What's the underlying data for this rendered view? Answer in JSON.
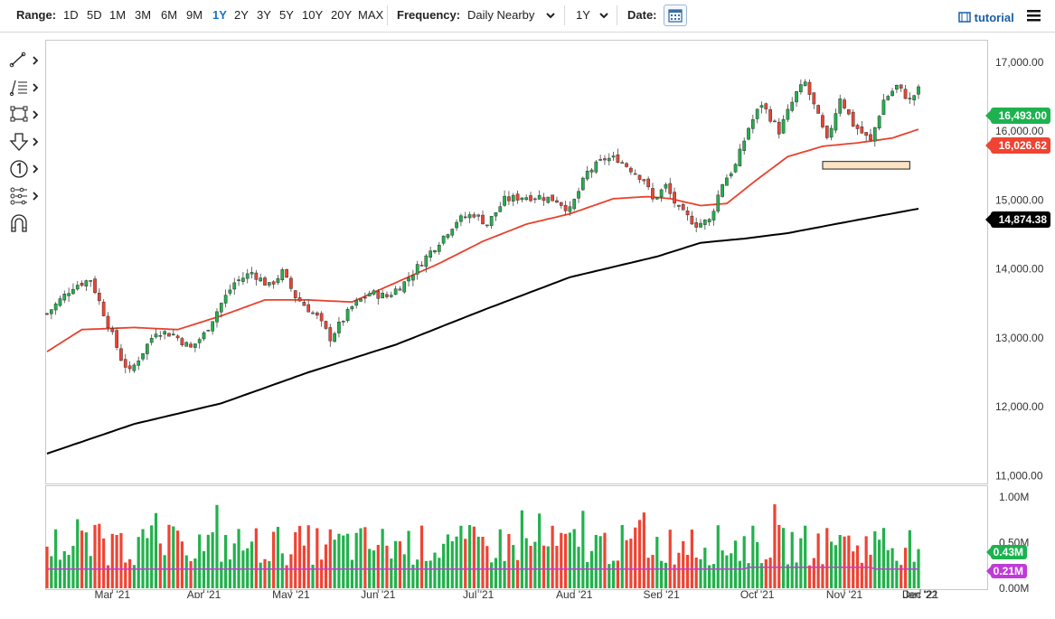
{
  "toolbar": {
    "range_label": "Range:",
    "ranges": [
      "1D",
      "5D",
      "1M",
      "3M",
      "6M",
      "9M",
      "1Y",
      "2Y",
      "3Y",
      "5Y",
      "10Y",
      "20Y",
      "MAX"
    ],
    "active_range": "1Y",
    "frequency_label": "Frequency:",
    "frequency_value": "Daily Nearby",
    "period_value": "1Y",
    "date_label": "Date:",
    "tutorial_label": "tutorial"
  },
  "sidebar_tools": [
    "line-tool-icon",
    "fib-tool-icon",
    "rectangle-tool-icon",
    "arrow-tool-icon",
    "number-tool-icon",
    "measure-tool-icon",
    "magnet-icon"
  ],
  "price_tags": {
    "last": "16,493.00",
    "ma_fast": "16,026.62",
    "ma_slow": "14,874.38"
  },
  "volume_tags": {
    "volume": "0.43M",
    "volume_avg": "0.21M"
  },
  "colors": {
    "up": "#22b14c",
    "down": "#ef4433",
    "ma_fast": "#e8412c",
    "ma_slow": "#000000",
    "vol_avg": "#c03ad8",
    "active": "#1a73c8",
    "support_box": "#fbe3c4"
  },
  "chart_data": {
    "type": "candlestick",
    "x_labels": [
      "Mar '21",
      "Apr '21",
      "May '21",
      "Jun '21",
      "Jul '21",
      "Aug '21",
      "Sep '21",
      "Oct '21",
      "Nov '21",
      "Dec '21",
      "Jan '22"
    ],
    "y_ticks": [
      "17,000.00",
      "16,000.00",
      "15,000.00",
      "14,000.00",
      "13,000.00",
      "12,000.00",
      "11,000.00"
    ],
    "y_range": [
      10900,
      17300
    ],
    "vol_ticks": [
      "1.00M",
      "0.50M",
      "0.00M"
    ],
    "vol_range": [
      0,
      1.1
    ],
    "price_path": [
      [
        0,
        13350
      ],
      [
        6,
        13750
      ],
      [
        10,
        13850
      ],
      [
        14,
        13200
      ],
      [
        17,
        12700
      ],
      [
        19,
        12500
      ],
      [
        21,
        12700
      ],
      [
        25,
        13100
      ],
      [
        29,
        13050
      ],
      [
        33,
        12850
      ],
      [
        36,
        13050
      ],
      [
        40,
        13500
      ],
      [
        43,
        13800
      ],
      [
        47,
        13950
      ],
      [
        51,
        13750
      ],
      [
        54,
        13950
      ],
      [
        57,
        13600
      ],
      [
        62,
        13300
      ],
      [
        65,
        13000
      ],
      [
        70,
        13450
      ],
      [
        74,
        13650
      ],
      [
        78,
        13600
      ],
      [
        82,
        13800
      ],
      [
        86,
        14100
      ],
      [
        90,
        14400
      ],
      [
        94,
        14700
      ],
      [
        98,
        14800
      ],
      [
        101,
        14650
      ],
      [
        105,
        15000
      ],
      [
        109,
        15050
      ],
      [
        113,
        15050
      ],
      [
        117,
        15000
      ],
      [
        120,
        14850
      ],
      [
        124,
        15400
      ],
      [
        128,
        15600
      ],
      [
        131,
        15600
      ],
      [
        134,
        15450
      ],
      [
        137,
        15300
      ],
      [
        139,
        15000
      ],
      [
        142,
        15200
      ],
      [
        145,
        14850
      ],
      [
        149,
        14650
      ],
      [
        152,
        14700
      ],
      [
        155,
        15250
      ],
      [
        158,
        15500
      ],
      [
        161,
        16050
      ],
      [
        164,
        16400
      ],
      [
        168,
        16000
      ],
      [
        172,
        16550
      ],
      [
        174,
        16700
      ],
      [
        177,
        16200
      ],
      [
        179,
        15850
      ],
      [
        182,
        16500
      ],
      [
        185,
        16100
      ],
      [
        189,
        15850
      ],
      [
        192,
        16450
      ],
      [
        195,
        16650
      ],
      [
        198,
        16450
      ],
      [
        200,
        16600
      ]
    ],
    "ma_fast_path": [
      [
        0,
        12800
      ],
      [
        8,
        13120
      ],
      [
        20,
        13150
      ],
      [
        30,
        13120
      ],
      [
        40,
        13320
      ],
      [
        50,
        13550
      ],
      [
        60,
        13550
      ],
      [
        70,
        13520
      ],
      [
        80,
        13800
      ],
      [
        90,
        14080
      ],
      [
        100,
        14400
      ],
      [
        110,
        14650
      ],
      [
        120,
        14800
      ],
      [
        130,
        15020
      ],
      [
        138,
        15050
      ],
      [
        143,
        15020
      ],
      [
        150,
        14920
      ],
      [
        156,
        14950
      ],
      [
        163,
        15300
      ],
      [
        170,
        15630
      ],
      [
        178,
        15780
      ],
      [
        186,
        15830
      ],
      [
        194,
        15900
      ],
      [
        200,
        16026.62
      ]
    ],
    "ma_slow_path": [
      [
        0,
        11320
      ],
      [
        20,
        11750
      ],
      [
        40,
        12050
      ],
      [
        60,
        12500
      ],
      [
        80,
        12900
      ],
      [
        100,
        13400
      ],
      [
        120,
        13880
      ],
      [
        140,
        14180
      ],
      [
        150,
        14380
      ],
      [
        160,
        14440
      ],
      [
        170,
        14520
      ],
      [
        185,
        14700
      ],
      [
        200,
        14874.38
      ]
    ],
    "support_zone": {
      "x": [
        178,
        198
      ],
      "y": [
        15450,
        15560
      ]
    },
    "volume_avg_level": 0.21,
    "volume_last": 0.43,
    "bar_count": 201
  }
}
